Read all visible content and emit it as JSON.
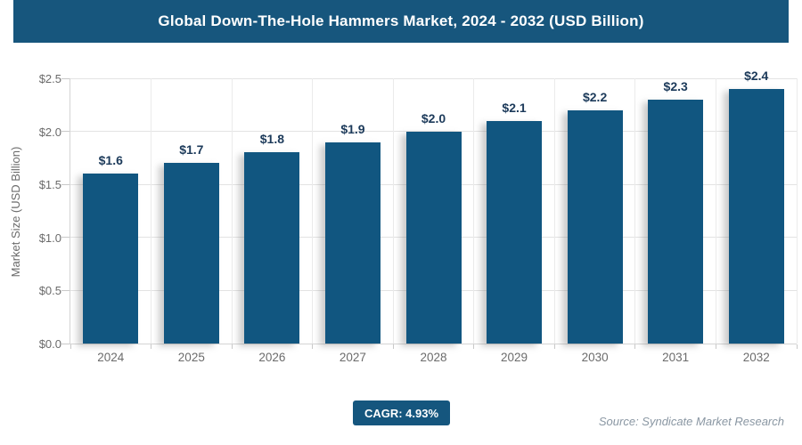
{
  "header": {
    "title": "Global Down-The-Hole Hammers Market, 2024 - 2032 (USD Billion)"
  },
  "footer": {
    "cagr_label": "CAGR: 4.93%",
    "source": "Source: Syndicate Market Research"
  },
  "colors": {
    "brand_blue": "#17567D",
    "bar_fill": "#115680",
    "badge_fill": "#15567E",
    "value_label": "#1C3A5A",
    "axis_text": "#6B6B6B",
    "gridline": "#E3E3E3",
    "source_text": "#8A97A3"
  },
  "chart_data": {
    "type": "bar",
    "title": "Global Down-The-Hole Hammers Market, 2024 - 2032 (USD Billion)",
    "categories": [
      "2024",
      "2025",
      "2026",
      "2027",
      "2028",
      "2029",
      "2030",
      "2031",
      "2032"
    ],
    "values": [
      1.6,
      1.7,
      1.8,
      1.9,
      2.0,
      2.1,
      2.2,
      2.3,
      2.4
    ],
    "value_labels": [
      "$1.6",
      "$1.7",
      "$1.8",
      "$1.9",
      "$2.0",
      "$2.1",
      "$2.2",
      "$2.3",
      "$2.4"
    ],
    "xlabel": "",
    "ylabel": "Market Size (USD Billion)",
    "ylim": [
      0,
      2.5
    ],
    "y_tick_values": [
      2.5,
      2.0,
      1.5,
      1.0,
      0.5,
      0.0
    ],
    "y_tick_labels": [
      "$2.5",
      "$2.0",
      "$1.5",
      "$1.0",
      "$0.5",
      "$0.0"
    ],
    "grid": true,
    "legend": false,
    "cagr_percent": 4.93
  }
}
